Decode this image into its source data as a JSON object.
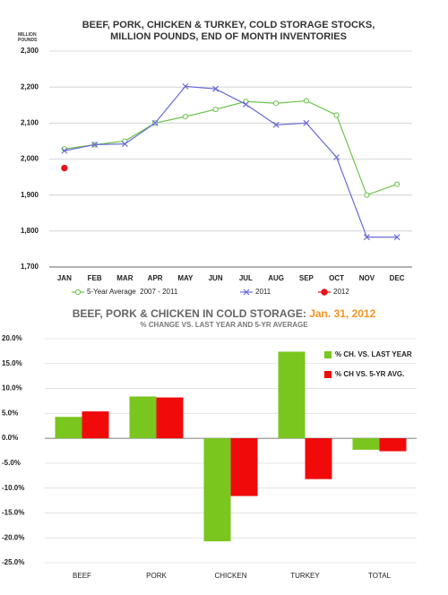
{
  "chart_data": [
    {
      "type": "line",
      "title": "BEEF, PORK, CHICKEN & TURKEY, COLD STORAGE STOCKS, MILLION POUNDS, END OF MONTH INVENTORIES",
      "y_label": "MILLION POUNDS",
      "categories": [
        "JAN",
        "FEB",
        "MAR",
        "APR",
        "MAY",
        "JUN",
        "JUL",
        "AUG",
        "SEP",
        "OCT",
        "NOV",
        "DEC"
      ],
      "ylim": [
        1700,
        2300
      ],
      "yticks": [
        {
          "value": 1700,
          "label": "1,700"
        },
        {
          "value": 1800,
          "label": "1,800"
        },
        {
          "value": 1900,
          "label": "1,900"
        },
        {
          "value": 2000,
          "label": "2,000"
        },
        {
          "value": 2100,
          "label": "2,100"
        },
        {
          "value": 2200,
          "label": "2,200"
        },
        {
          "value": 2300,
          "label": "2,300"
        }
      ],
      "grid": true,
      "series": [
        {
          "name": "5-Year Average  2007 - 2011",
          "color": "#6cc24a",
          "marker": "circle-open",
          "values": [
            2028,
            2040,
            2050,
            2100,
            2118,
            2138,
            2160,
            2155,
            2162,
            2122,
            1900,
            1930
          ]
        },
        {
          "name": "2011",
          "color": "#6a6ad8",
          "marker": "x",
          "values": [
            2023,
            2040,
            2042,
            2100,
            2202,
            2195,
            2152,
            2095,
            2100,
            2005,
            1783,
            1783
          ]
        },
        {
          "name": "2012",
          "color": "#e8141b",
          "marker": "circle",
          "values": [
            1975,
            null,
            null,
            null,
            null,
            null,
            null,
            null,
            null,
            null,
            null,
            null
          ]
        }
      ]
    },
    {
      "type": "bar",
      "title": "BEEF, PORK & CHICKEN IN COLD STORAGE:",
      "title_date": "Jan. 31, 2012",
      "subtitle": "% CHANGE VS. LAST YEAR AND 5-YR AVERAGE",
      "categories": [
        "BEEF",
        "PORK",
        "CHICKEN",
        "TURKEY",
        "TOTAL"
      ],
      "ylim": [
        -25,
        20
      ],
      "yticks": [
        {
          "value": -25,
          "label": "-25.0%"
        },
        {
          "value": -20,
          "label": "-20.0%"
        },
        {
          "value": -15,
          "label": "-15.0%"
        },
        {
          "value": -10,
          "label": "-10.0%"
        },
        {
          "value": -5,
          "label": "-5.0%"
        },
        {
          "value": 0,
          "label": "0.0%"
        },
        {
          "value": 5,
          "label": "5.0%"
        },
        {
          "value": 10,
          "label": "10.0%"
        },
        {
          "value": 15,
          "label": "15.0%"
        },
        {
          "value": 20,
          "label": "20.0%"
        }
      ],
      "grid": true,
      "legend": "top-right",
      "series": [
        {
          "name": "% CH. VS. LAST YEAR",
          "color": "#7ac61e",
          "values": [
            4.3,
            8.4,
            -20.7,
            17.4,
            -2.3
          ]
        },
        {
          "name": "% CH VS. 5-YR AVG.",
          "color": "#f00a0a",
          "values": [
            5.4,
            8.2,
            -11.6,
            -8.2,
            -2.6
          ]
        }
      ]
    }
  ]
}
